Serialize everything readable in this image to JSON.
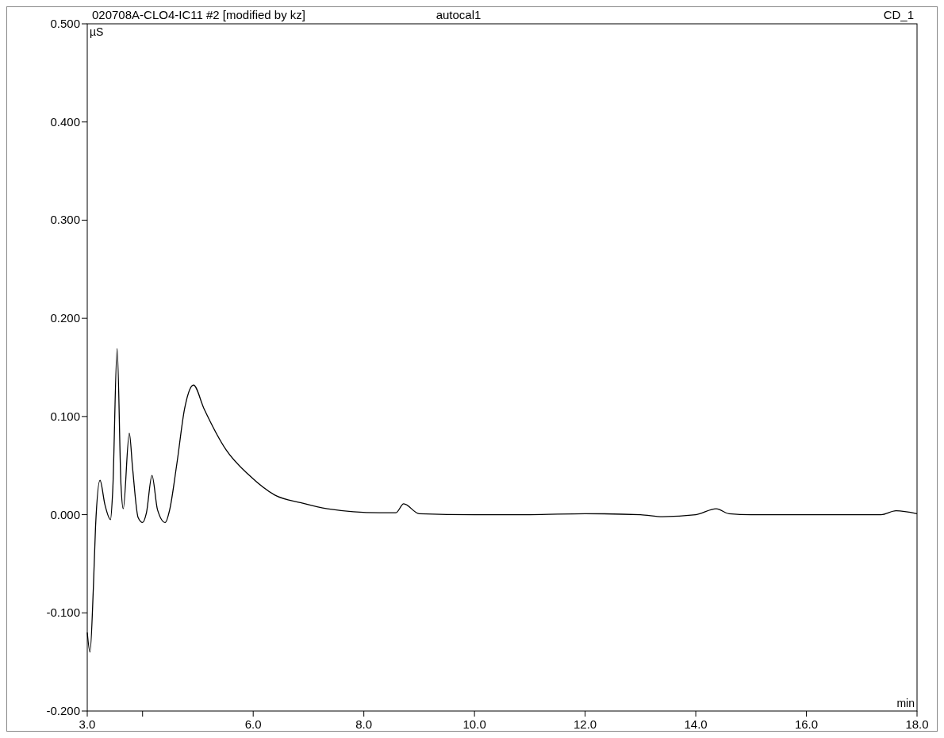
{
  "chart_data": {
    "type": "line",
    "title": "020708A-CLO4-IC11 #2 [modified by kz]",
    "annotations": [
      "autocal1",
      "CD_1"
    ],
    "xlabel": "min",
    "ylabel": "µS",
    "xlim": [
      3.0,
      18.0
    ],
    "xticks": [
      {
        "value": 3,
        "label": "3.0"
      },
      {
        "value": 4,
        "label": null
      },
      {
        "value": 6,
        "label": "6.0"
      },
      {
        "value": 8,
        "label": "8.0"
      },
      {
        "value": 10,
        "label": "10.0"
      },
      {
        "value": 12,
        "label": "12.0"
      },
      {
        "value": 14,
        "label": "14.0"
      },
      {
        "value": 16,
        "label": "16.0"
      },
      {
        "value": 18,
        "label": "18.0"
      }
    ],
    "ylim": [
      -0.2,
      0.5
    ],
    "yticks": [
      {
        "value": -0.2,
        "label": "-0.200"
      },
      {
        "value": -0.1,
        "label": "-0.100"
      },
      {
        "value": 0,
        "label": "0.000"
      },
      {
        "value": 0.1,
        "label": "0.100"
      },
      {
        "value": 0.2,
        "label": "0.200"
      },
      {
        "value": 0.3,
        "label": "0.300"
      },
      {
        "value": 0.4,
        "label": "0.400"
      },
      {
        "value": 0.5,
        "label": "0.500"
      }
    ],
    "grid": false,
    "marker": "none",
    "line_style": "solid",
    "series": [
      {
        "color": "#000000",
        "x": [
          3.0,
          3.05,
          3.11,
          3.15,
          3.23,
          3.32,
          3.42,
          3.46,
          3.54,
          3.61,
          3.65,
          3.76,
          3.82,
          3.92,
          4.0,
          4.07,
          4.17,
          4.27,
          4.41,
          4.49,
          4.62,
          4.76,
          4.92,
          5.11,
          5.51,
          5.93,
          6.39,
          6.87,
          7.34,
          8.28,
          8.58,
          8.72,
          9.0,
          10.0,
          11.0,
          12.0,
          13.0,
          13.4,
          14.0,
          14.37,
          14.6,
          15.0,
          16.0,
          17.0,
          17.35,
          17.62,
          18.0
        ],
        "values": [
          -0.12,
          -0.14,
          -0.075,
          -0.012,
          0.035,
          0.01,
          -0.005,
          0.024,
          0.169,
          0.03,
          0.006,
          0.083,
          0.047,
          -0.003,
          -0.008,
          0.002,
          0.04,
          0.005,
          -0.008,
          0.005,
          0.052,
          0.108,
          0.132,
          0.108,
          0.066,
          0.04,
          0.02,
          0.012,
          0.006,
          0.002,
          0.002,
          0.011,
          0.001,
          0.0,
          0.0,
          0.001,
          0.0,
          -0.002,
          0.0,
          0.006,
          0.001,
          0.0,
          0.0,
          0.0,
          0.0,
          0.004,
          0.001
        ]
      }
    ]
  }
}
